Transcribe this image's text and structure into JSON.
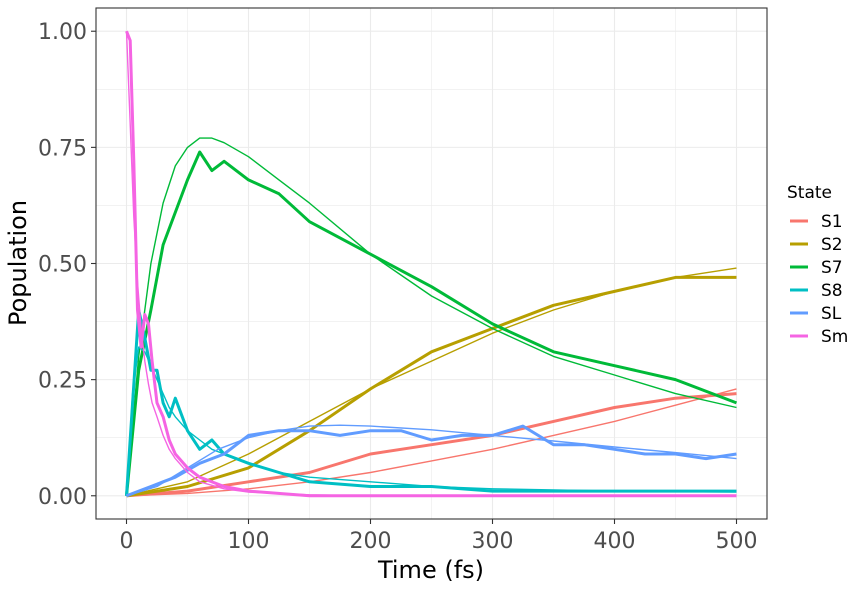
{
  "chart_data": {
    "type": "line",
    "title": "",
    "xlabel": "Time (fs)",
    "ylabel": "Population",
    "xlim": [
      -25,
      525
    ],
    "ylim": [
      -0.05,
      1.05
    ],
    "xticks": [
      0,
      100,
      200,
      300,
      400,
      500
    ],
    "xtick_labels": [
      "0",
      "100",
      "200",
      "300",
      "400",
      "500"
    ],
    "yticks": [
      0,
      0.25,
      0.5,
      0.75,
      1.0
    ],
    "ytick_labels": [
      "0.00",
      "0.25",
      "0.50",
      "0.75",
      "1.00"
    ],
    "grid": true,
    "legend_title": "State",
    "legend_position": "right",
    "series": [
      {
        "name": "S1",
        "color": "#F8766D",
        "simulated": {
          "x": [
            0,
            50,
            100,
            150,
            200,
            250,
            300,
            350,
            400,
            450,
            500
          ],
          "y": [
            0.0,
            0.01,
            0.03,
            0.05,
            0.09,
            0.11,
            0.13,
            0.16,
            0.19,
            0.21,
            0.22
          ]
        },
        "fit": {
          "x": [
            0,
            50,
            100,
            150,
            200,
            250,
            300,
            350,
            400,
            450,
            500
          ],
          "y": [
            0.0,
            0.005,
            0.015,
            0.03,
            0.05,
            0.075,
            0.1,
            0.13,
            0.16,
            0.195,
            0.23
          ]
        }
      },
      {
        "name": "S2",
        "color": "#B79F00",
        "simulated": {
          "x": [
            0,
            50,
            100,
            150,
            200,
            250,
            300,
            350,
            400,
            450,
            500
          ],
          "y": [
            0.0,
            0.02,
            0.06,
            0.14,
            0.23,
            0.31,
            0.36,
            0.41,
            0.44,
            0.47,
            0.47
          ]
        },
        "fit": {
          "x": [
            0,
            50,
            100,
            150,
            200,
            250,
            300,
            350,
            400,
            450,
            500
          ],
          "y": [
            0.0,
            0.03,
            0.09,
            0.16,
            0.23,
            0.29,
            0.35,
            0.4,
            0.44,
            0.47,
            0.49
          ]
        }
      },
      {
        "name": "S7",
        "color": "#00BA38",
        "simulated": {
          "x": [
            0,
            10,
            20,
            30,
            40,
            50,
            60,
            70,
            80,
            100,
            125,
            150,
            200,
            250,
            300,
            350,
            400,
            450,
            500
          ],
          "y": [
            0.0,
            0.27,
            0.4,
            0.54,
            0.61,
            0.68,
            0.74,
            0.7,
            0.72,
            0.68,
            0.65,
            0.59,
            0.52,
            0.45,
            0.37,
            0.31,
            0.28,
            0.25,
            0.2
          ]
        },
        "fit": {
          "x": [
            0,
            10,
            20,
            30,
            40,
            50,
            60,
            70,
            80,
            100,
            125,
            150,
            200,
            250,
            300,
            350,
            400,
            450,
            500
          ],
          "y": [
            0.0,
            0.3,
            0.5,
            0.63,
            0.71,
            0.75,
            0.77,
            0.77,
            0.76,
            0.73,
            0.68,
            0.63,
            0.52,
            0.43,
            0.36,
            0.3,
            0.26,
            0.22,
            0.19
          ]
        }
      },
      {
        "name": "S8",
        "color": "#00BFC4",
        "simulated": {
          "x": [
            0,
            5,
            10,
            15,
            20,
            25,
            30,
            35,
            40,
            50,
            60,
            70,
            80,
            100,
            125,
            150,
            200,
            250,
            300,
            400,
            500
          ],
          "y": [
            0.0,
            0.2,
            0.4,
            0.34,
            0.27,
            0.27,
            0.2,
            0.17,
            0.21,
            0.14,
            0.1,
            0.12,
            0.09,
            0.07,
            0.05,
            0.03,
            0.02,
            0.02,
            0.01,
            0.01,
            0.01
          ]
        },
        "fit": {
          "x": [
            0,
            5,
            10,
            15,
            20,
            25,
            30,
            35,
            40,
            50,
            60,
            70,
            80,
            100,
            125,
            150,
            200,
            250,
            300,
            400,
            500
          ],
          "y": [
            0.0,
            0.22,
            0.32,
            0.31,
            0.28,
            0.25,
            0.22,
            0.19,
            0.17,
            0.14,
            0.12,
            0.1,
            0.09,
            0.07,
            0.05,
            0.04,
            0.03,
            0.02,
            0.015,
            0.01,
            0.008
          ]
        }
      },
      {
        "name": "SL",
        "color": "#619CFF",
        "simulated": {
          "x": [
            0,
            10,
            20,
            30,
            40,
            60,
            80,
            100,
            125,
            150,
            175,
            200,
            225,
            250,
            275,
            300,
            325,
            350,
            375,
            400,
            425,
            450,
            475,
            500
          ],
          "y": [
            0.0,
            0.01,
            0.02,
            0.03,
            0.04,
            0.07,
            0.09,
            0.13,
            0.14,
            0.14,
            0.13,
            0.14,
            0.14,
            0.12,
            0.13,
            0.13,
            0.15,
            0.11,
            0.11,
            0.1,
            0.09,
            0.09,
            0.08,
            0.09
          ]
        },
        "fit": {
          "x": [
            0,
            25,
            50,
            75,
            100,
            125,
            150,
            175,
            200,
            250,
            300,
            350,
            400,
            450,
            500
          ],
          "y": [
            0.0,
            0.02,
            0.06,
            0.1,
            0.125,
            0.14,
            0.15,
            0.152,
            0.15,
            0.142,
            0.13,
            0.118,
            0.105,
            0.093,
            0.08
          ]
        }
      },
      {
        "name": "Sm",
        "color": "#F564E3",
        "simulated": {
          "x": [
            0,
            3,
            6,
            9,
            12,
            15,
            18,
            21,
            25,
            30,
            35,
            40,
            50,
            60,
            80,
            100,
            150,
            200,
            300,
            400,
            500
          ],
          "y": [
            1.0,
            0.98,
            0.72,
            0.4,
            0.32,
            0.39,
            0.37,
            0.29,
            0.2,
            0.17,
            0.12,
            0.09,
            0.06,
            0.04,
            0.02,
            0.01,
            0.0,
            0.0,
            0.0,
            0.0,
            0.0
          ]
        },
        "fit": {
          "x": [
            0,
            3,
            6,
            9,
            12,
            15,
            18,
            21,
            25,
            30,
            35,
            40,
            50,
            60,
            80,
            100,
            150,
            200,
            300,
            400,
            500
          ],
          "y": [
            1.0,
            0.8,
            0.6,
            0.46,
            0.36,
            0.29,
            0.24,
            0.2,
            0.17,
            0.13,
            0.1,
            0.08,
            0.05,
            0.03,
            0.015,
            0.008,
            0.002,
            0.0,
            0.0,
            0.0,
            0.0
          ]
        }
      }
    ]
  }
}
